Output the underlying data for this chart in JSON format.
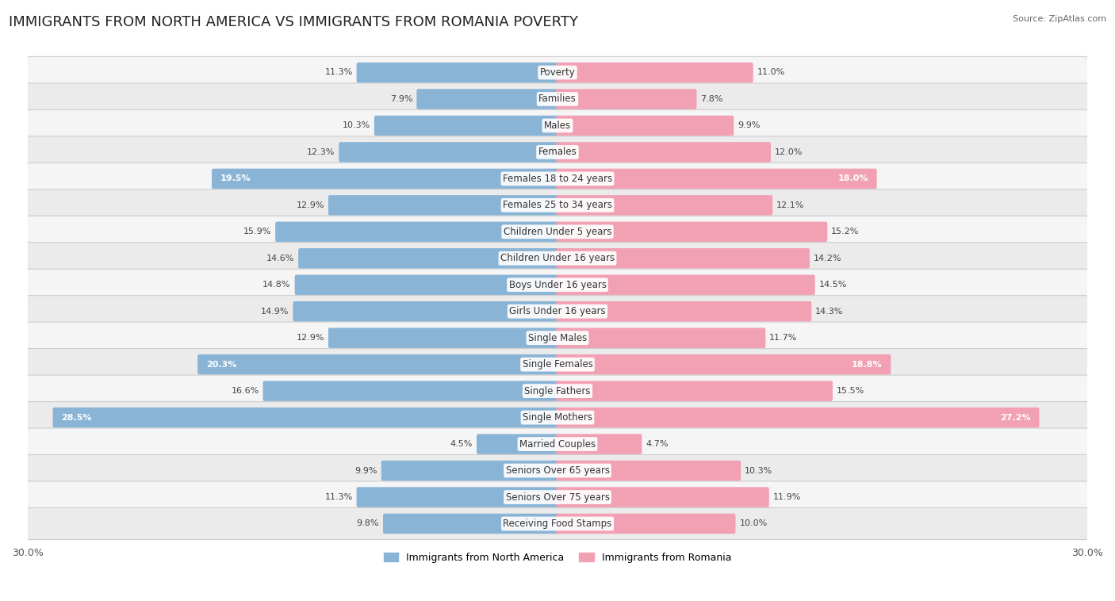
{
  "title": "IMMIGRANTS FROM NORTH AMERICA VS IMMIGRANTS FROM ROMANIA POVERTY",
  "source": "Source: ZipAtlas.com",
  "categories": [
    "Poverty",
    "Families",
    "Males",
    "Females",
    "Females 18 to 24 years",
    "Females 25 to 34 years",
    "Children Under 5 years",
    "Children Under 16 years",
    "Boys Under 16 years",
    "Girls Under 16 years",
    "Single Males",
    "Single Females",
    "Single Fathers",
    "Single Mothers",
    "Married Couples",
    "Seniors Over 65 years",
    "Seniors Over 75 years",
    "Receiving Food Stamps"
  ],
  "north_america": [
    11.3,
    7.9,
    10.3,
    12.3,
    19.5,
    12.9,
    15.9,
    14.6,
    14.8,
    14.9,
    12.9,
    20.3,
    16.6,
    28.5,
    4.5,
    9.9,
    11.3,
    9.8
  ],
  "romania": [
    11.0,
    7.8,
    9.9,
    12.0,
    18.0,
    12.1,
    15.2,
    14.2,
    14.5,
    14.3,
    11.7,
    18.8,
    15.5,
    27.2,
    4.7,
    10.3,
    11.9,
    10.0
  ],
  "blue_color": "#8ab4d5",
  "pink_color": "#f2a0b4",
  "blue_label": "Immigrants from North America",
  "pink_label": "Immigrants from Romania",
  "axis_max": 30.0,
  "bar_height": 0.6,
  "title_fontsize": 13,
  "label_fontsize": 8.5,
  "value_fontsize": 8.0
}
